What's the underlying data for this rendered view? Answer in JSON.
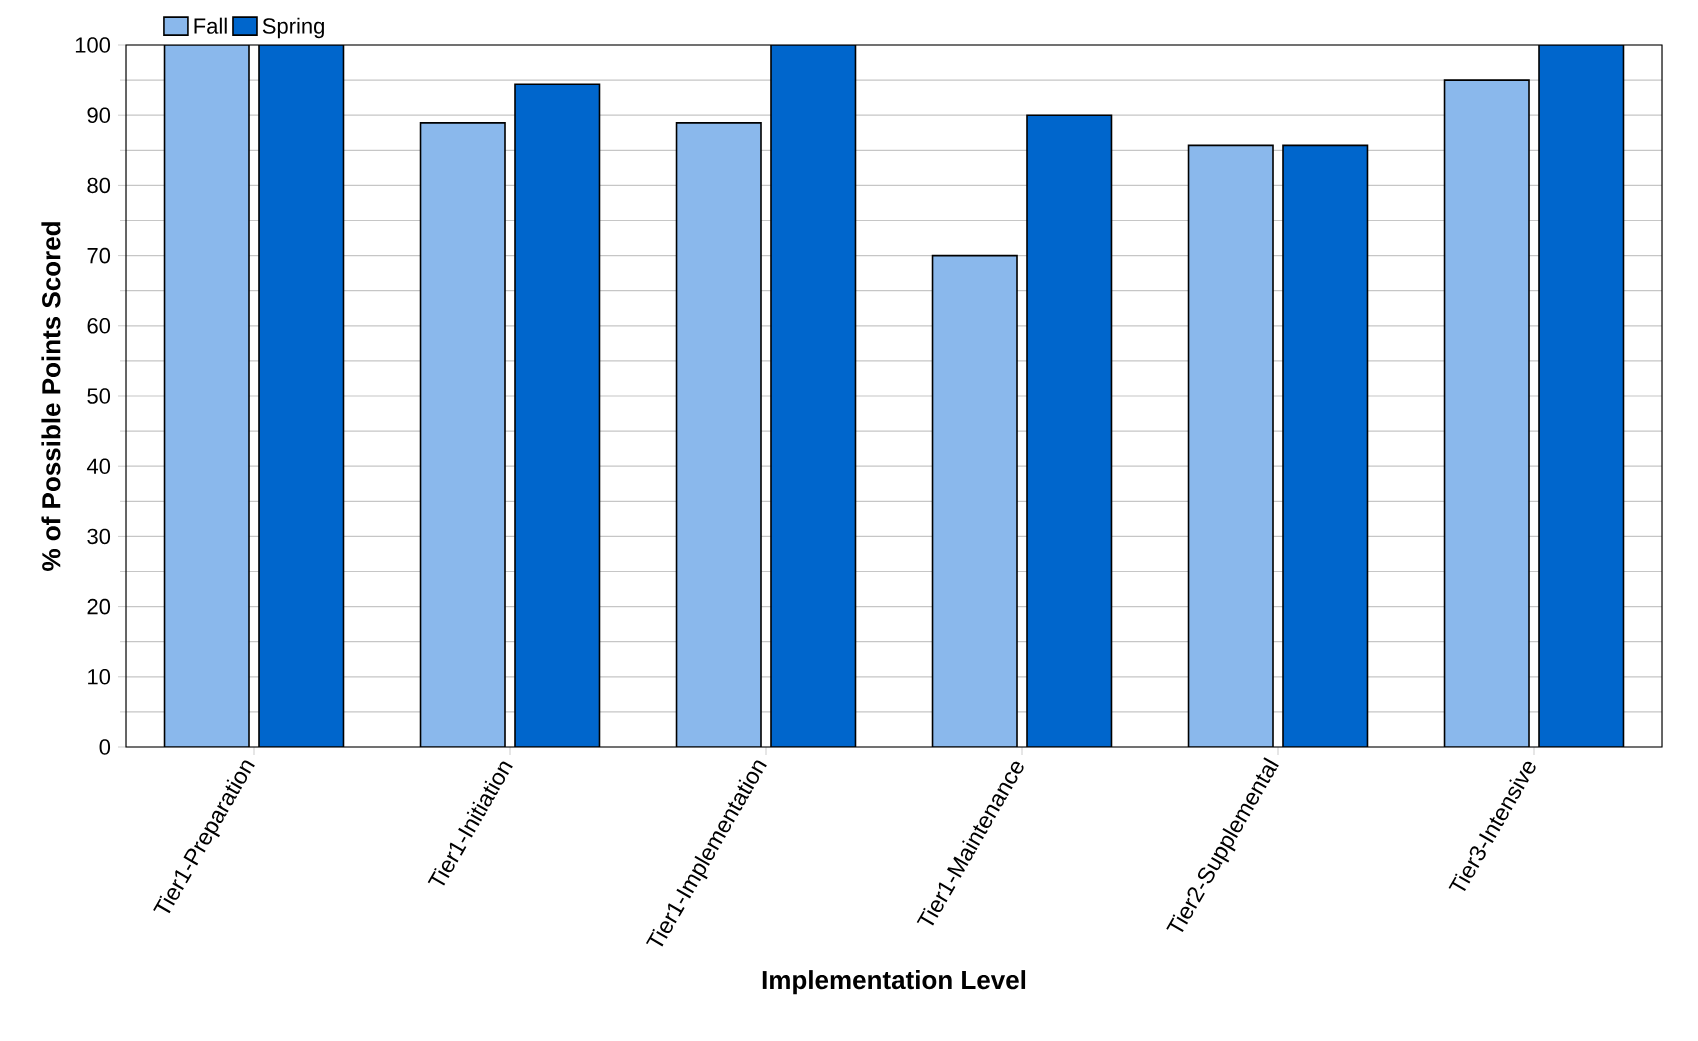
{
  "chart_data": {
    "type": "bar",
    "xlabel": "Implementation Level",
    "ylabel": "% of Possible Points Scored",
    "categories": [
      "Tier1-Preparation",
      "Tier1-Initiation",
      "Tier1-Implementation",
      "Tier1-Maintenance",
      "Tier2-Supplemental",
      "Tier3-Intensive"
    ],
    "series": [
      {
        "name": "Fall",
        "color": "#8ab8ec",
        "values": [
          100,
          88.9,
          88.9,
          70,
          85.7,
          95
        ]
      },
      {
        "name": "Spring",
        "color": "#0066cc",
        "values": [
          100,
          94.4,
          100,
          90,
          85.7,
          100
        ]
      }
    ],
    "ylim": [
      0,
      100
    ],
    "yticks": [
      0,
      10,
      20,
      30,
      40,
      50,
      60,
      70,
      80,
      90,
      100
    ],
    "grid": "y",
    "legend": "top left"
  }
}
